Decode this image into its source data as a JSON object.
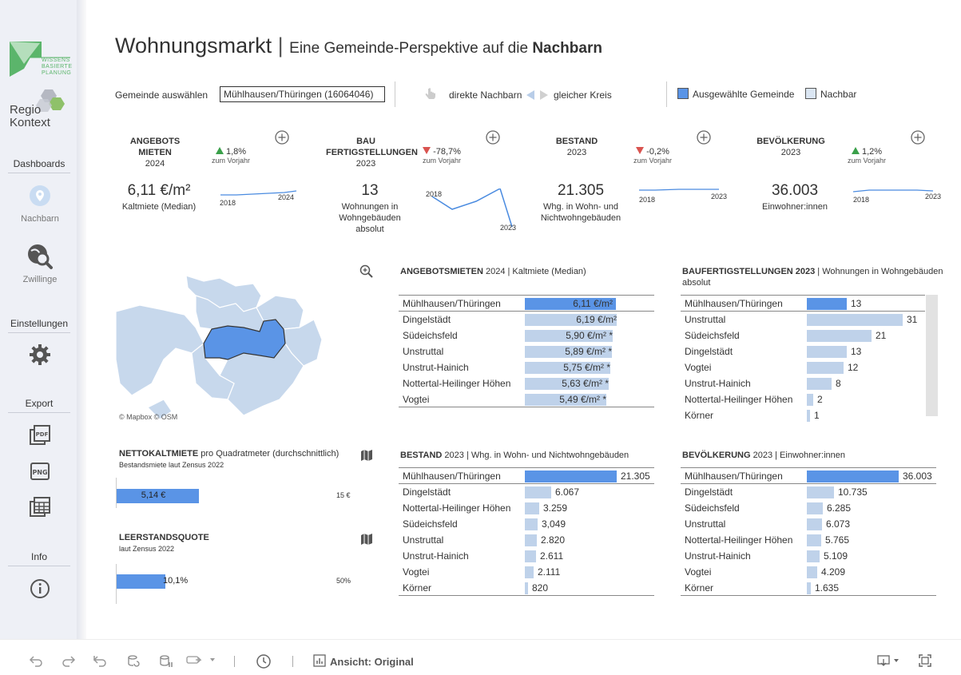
{
  "sidebar": {
    "logo_wb_lines": [
      "WISSENS",
      "BASIERTE",
      "PLANUNG"
    ],
    "logo_rk_line1": "Regio",
    "logo_rk_line2": "Kontext",
    "dashboards": "Dashboards",
    "nachbarn": "Nachbarn",
    "zwillinge": "Zwillinge",
    "einstellungen": "Einstellungen",
    "export": "Export",
    "pdf": "PDF",
    "png": "PNG",
    "info": "Info"
  },
  "header": {
    "title": "Wohnungsmarkt",
    "separator": "|",
    "subtitle_pre": "Eine Gemeinde-Perspektive auf die ",
    "subtitle_bold": "Nachbarn"
  },
  "controls": {
    "gemeinde_label": "Gemeinde auswählen",
    "gemeinde_value": "Mühlhausen/Thüringen (16064046)",
    "direkte": "direkte Nachbarn",
    "gleicher": "gleicher Kreis",
    "legend_selected": "Ausgewählte Gemeinde",
    "legend_neighbor": "Nachbar"
  },
  "kpis": [
    {
      "title": "ANGEBOTS MIETEN",
      "year": "2024",
      "delta": "1,8%",
      "dir": "up",
      "delta_sub": "zum Vorjahr",
      "value": "6,11 €/m²",
      "desc": "Kaltmiete (Median)",
      "spark_start": "2018",
      "spark_end": "2024"
    },
    {
      "title": "BAU FERTIGSTELLUNGEN",
      "year": "2023",
      "delta": "-78,7%",
      "dir": "down",
      "delta_sub": "zum Vorjahr",
      "value": "13",
      "desc": "Wohnungen in Wohngebäuden absolut",
      "spark_start": "2018",
      "spark_end": "2023"
    },
    {
      "title": "BESTAND",
      "year": "2023",
      "delta": "-0,2%",
      "dir": "down",
      "delta_sub": "zum Vorjahr",
      "value": "21.305",
      "desc": "Whg. in Wohn- und Nichtwohngebäuden",
      "spark_start": "2018",
      "spark_end": "2023"
    },
    {
      "title": "BEVÖLKERUNG",
      "year": "2023",
      "delta": "1,2%",
      "dir": "up",
      "delta_sub": "zum Vorjahr",
      "value": "36.003",
      "desc": "Einwohner:innen",
      "spark_start": "2018",
      "spark_end": "2023"
    }
  ],
  "map": {
    "attribution": "© Mapbox  © OSM"
  },
  "angebotsmieten": {
    "title_bold": "ANGEBOTSMIETEN",
    "title_rest": " 2024 | Kaltmiete (Median)",
    "rows": [
      {
        "name": "Mühlhausen/Thüringen",
        "value": 6.11,
        "label": "6,11 €/m²",
        "selected": true
      },
      {
        "name": "Dingelstädt",
        "value": 6.19,
        "label": "6,19 €/m²"
      },
      {
        "name": "Südeichsfeld",
        "value": 5.9,
        "label": "5,90 €/m² *"
      },
      {
        "name": "Unstruttal",
        "value": 5.89,
        "label": "5,89 €/m² *"
      },
      {
        "name": "Unstrut-Hainich",
        "value": 5.75,
        "label": "5,75 €/m² *"
      },
      {
        "name": "Nottertal-Heilinger Höhen",
        "value": 5.63,
        "label": "5,63 €/m² *"
      },
      {
        "name": "Vogtei",
        "value": 5.49,
        "label": "5,49 €/m² *"
      }
    ]
  },
  "baufertig": {
    "title_bold": "BAUFERTIGSTELLUNGEN 2023",
    "title_rest": " | Wohnungen in Wohngebäuden",
    "title_line2": "absolut",
    "rows": [
      {
        "name": "Mühlhausen/Thüringen",
        "value": 13,
        "label": "13",
        "selected": true
      },
      {
        "name": "Unstruttal",
        "value": 31,
        "label": "31"
      },
      {
        "name": "Südeichsfeld",
        "value": 21,
        "label": "21"
      },
      {
        "name": "Dingelstädt",
        "value": 13,
        "label": "13"
      },
      {
        "name": "Vogtei",
        "value": 12,
        "label": "12"
      },
      {
        "name": "Unstrut-Hainich",
        "value": 8,
        "label": "8"
      },
      {
        "name": "Nottertal-Heilinger Höhen",
        "value": 2,
        "label": "2"
      },
      {
        "name": "Körner",
        "value": 1,
        "label": "1"
      }
    ]
  },
  "bestand": {
    "title_bold": "BESTAND",
    "title_rest": " 2023 | Whg. in Wohn- und Nichtwohngebäuden",
    "rows": [
      {
        "name": "Mühlhausen/Thüringen",
        "value": 21305,
        "label": "21.305",
        "selected": true
      },
      {
        "name": "Dingelstädt",
        "value": 6067,
        "label": "6.067"
      },
      {
        "name": "Nottertal-Heilinger Höhen",
        "value": 3259,
        "label": "3.259"
      },
      {
        "name": "Südeichsfeld",
        "value": 3049,
        "label": "3,049"
      },
      {
        "name": "Unstruttal",
        "value": 2820,
        "label": "2.820"
      },
      {
        "name": "Unstrut-Hainich",
        "value": 2611,
        "label": "2.611"
      },
      {
        "name": "Vogtei",
        "value": 2111,
        "label": "2.111"
      },
      {
        "name": "Körner",
        "value": 820,
        "label": "820"
      }
    ]
  },
  "bevoelkerung": {
    "title_bold": "BEVÖLKERUNG",
    "title_rest": " 2023 | Einwohner:innen",
    "rows": [
      {
        "name": "Mühlhausen/Thüringen",
        "value": 36003,
        "label": "36.003",
        "selected": true
      },
      {
        "name": "Dingelstädt",
        "value": 10735,
        "label": "10.735"
      },
      {
        "name": "Südeichsfeld",
        "value": 6285,
        "label": "6.285"
      },
      {
        "name": "Unstruttal",
        "value": 6073,
        "label": "6.073"
      },
      {
        "name": "Nottertal-Heilinger Höhen",
        "value": 5765,
        "label": "5.765"
      },
      {
        "name": "Unstrut-Hainich",
        "value": 5109,
        "label": "5.109"
      },
      {
        "name": "Vogtei",
        "value": 4209,
        "label": "4.209"
      },
      {
        "name": "Körner",
        "value": 1635,
        "label": "1.635"
      }
    ]
  },
  "nettokaltmiete": {
    "title_bold": "NETTOKALTMIETE",
    "title_rest": " pro Quadratmeter (durchschnittlich)",
    "sub": "Bestandsmiete laut Zensus 2022",
    "value": 5.14,
    "label": "5,14 €",
    "max": 15,
    "max_label": "15 €"
  },
  "leerstand": {
    "title_bold": "LEERSTANDSQUOTE",
    "sub": "laut Zensus 2022",
    "value": 10.1,
    "label": "10,1%",
    "max": 50,
    "max_label": "50%"
  },
  "toolbar": {
    "view_label": "Ansicht: Original"
  },
  "colors": {
    "selected": "#5a94e6",
    "neighbor": "#bfd2ea",
    "up": "#3aa04a",
    "down": "#d9534f",
    "spark": "#4a8be0"
  }
}
